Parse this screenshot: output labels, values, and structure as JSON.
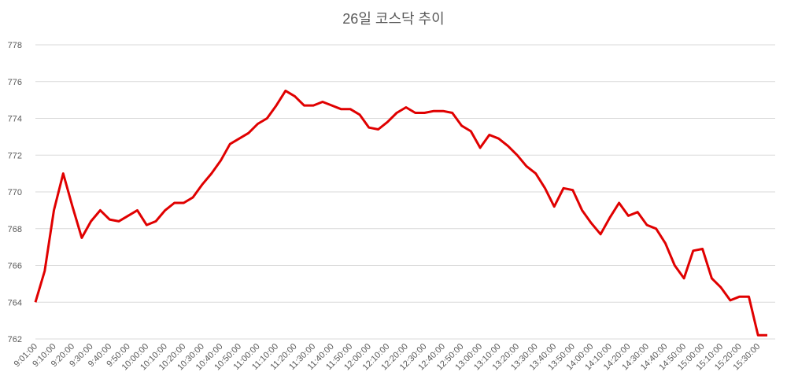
{
  "chart_data": {
    "type": "line",
    "title": "26일 코스닥 추이",
    "categories": [
      "9:01:00",
      null,
      "9:10:00",
      null,
      "9:20:00",
      null,
      "9:30:00",
      null,
      "9:40:00",
      null,
      "9:50:00",
      null,
      "10:00:00",
      null,
      "10:10:00",
      null,
      "10:20:00",
      null,
      "10:30:00",
      null,
      "10:40:00",
      null,
      "10:50:00",
      null,
      "11:00:00",
      null,
      "11:10:00",
      null,
      "11:20:00",
      null,
      "11:30:00",
      null,
      "11:40:00",
      null,
      "11:50:00",
      null,
      "12:00:00",
      null,
      "12:10:00",
      null,
      "12:20:00",
      null,
      "12:30:00",
      null,
      "12:40:00",
      null,
      "12:50:00",
      null,
      "13:00:00",
      null,
      "13:10:00",
      null,
      "13:20:00",
      null,
      "13:30:00",
      null,
      "13:40:00",
      null,
      "13:50:00",
      null,
      "14:00:00",
      null,
      "14:10:00",
      null,
      "14:20:00",
      null,
      "14:30:00",
      null,
      "14:40:00",
      null,
      "14:50:00",
      null,
      "15:00:00",
      null,
      "15:10:00",
      null,
      "15:20:00",
      null,
      "15:30:00",
      null
    ],
    "series": [
      {
        "name": "코스닥",
        "color": "#e00000",
        "values": [
          764.0,
          765.7,
          769.0,
          771.0,
          769.2,
          767.5,
          768.4,
          769.0,
          768.5,
          768.4,
          768.7,
          769.0,
          768.2,
          768.4,
          769.0,
          769.4,
          769.4,
          769.7,
          770.4,
          771.0,
          771.7,
          772.6,
          772.9,
          773.2,
          773.7,
          774.0,
          774.7,
          775.5,
          775.2,
          774.7,
          774.7,
          774.9,
          774.7,
          774.5,
          774.5,
          774.2,
          773.5,
          773.4,
          773.8,
          774.3,
          774.6,
          774.3,
          774.3,
          774.4,
          774.4,
          774.3,
          773.6,
          773.3,
          772.4,
          773.1,
          772.9,
          772.5,
          772.0,
          771.4,
          771.0,
          770.2,
          769.2,
          770.2,
          770.1,
          769.0,
          768.3,
          767.7,
          768.6,
          769.4,
          768.7,
          768.9,
          768.2,
          768.0,
          767.2,
          766.0,
          765.3,
          766.8,
          766.9,
          765.3,
          764.8,
          764.1,
          764.3,
          764.3,
          762.2,
          762.2
        ]
      }
    ],
    "ylim": [
      762,
      778
    ],
    "yticks": [
      762,
      764,
      766,
      768,
      770,
      772,
      774,
      776,
      778
    ],
    "grid": true
  }
}
